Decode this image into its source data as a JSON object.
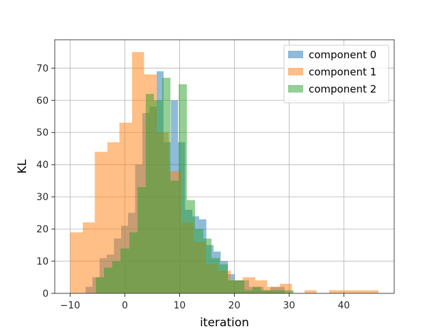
{
  "chart_data": {
    "type": "bar",
    "subtype": "overlapping-histogram",
    "xlabel": "iteration",
    "ylabel": "KL",
    "xlim": [
      -12.8,
      49.2
    ],
    "ylim": [
      0,
      78.8
    ],
    "xticks": [
      -10,
      0,
      10,
      20,
      30,
      40
    ],
    "yticks": [
      0,
      10,
      20,
      30,
      40,
      50,
      60,
      70
    ],
    "grid": true,
    "legend_position": "top-right",
    "series": [
      {
        "name": "component 0",
        "color": "#1f77b4",
        "alpha": 0.5,
        "bins": [
          [
            -7.2,
            -5.9,
            2
          ],
          [
            -5.9,
            -4.6,
            5
          ],
          [
            -4.6,
            -3.3,
            11
          ],
          [
            -3.3,
            -2.0,
            12
          ],
          [
            -2.0,
            -0.7,
            17
          ],
          [
            -0.7,
            0.6,
            21
          ],
          [
            0.6,
            1.9,
            25
          ],
          [
            1.9,
            3.2,
            40
          ],
          [
            3.2,
            4.5,
            56
          ],
          [
            4.5,
            5.8,
            58
          ],
          [
            5.8,
            7.1,
            69
          ],
          [
            7.1,
            8.4,
            47
          ],
          [
            8.4,
            9.7,
            60
          ],
          [
            9.7,
            11.0,
            47
          ],
          [
            11.0,
            12.3,
            26
          ],
          [
            12.3,
            13.6,
            24
          ],
          [
            13.6,
            14.9,
            23
          ],
          [
            14.9,
            16.2,
            15
          ],
          [
            16.2,
            17.5,
            13
          ],
          [
            17.5,
            18.8,
            10
          ],
          [
            18.8,
            20.1,
            6
          ],
          [
            20.1,
            21.4,
            4
          ],
          [
            21.4,
            22.7,
            4
          ],
          [
            22.7,
            24.0,
            2
          ],
          [
            24.0,
            25.3,
            2
          ],
          [
            25.3,
            26.6,
            1
          ],
          [
            26.6,
            27.9,
            2
          ],
          [
            27.9,
            29.2,
            2
          ]
        ]
      },
      {
        "name": "component 1",
        "color": "#ff7f0e",
        "alpha": 0.5,
        "bins": [
          [
            -10.0,
            -7.7,
            19
          ],
          [
            -7.7,
            -5.5,
            22
          ],
          [
            -5.5,
            -3.2,
            44
          ],
          [
            -3.2,
            -1.0,
            47
          ],
          [
            -1.0,
            1.3,
            53
          ],
          [
            1.3,
            3.5,
            75
          ],
          [
            3.5,
            5.8,
            68
          ],
          [
            5.8,
            8.0,
            50
          ],
          [
            8.0,
            10.3,
            38
          ],
          [
            10.3,
            12.5,
            22
          ],
          [
            12.5,
            14.8,
            16
          ],
          [
            14.8,
            17.0,
            9
          ],
          [
            17.0,
            19.3,
            7
          ],
          [
            19.3,
            21.5,
            4
          ],
          [
            21.5,
            23.8,
            5
          ],
          [
            23.8,
            26.0,
            4
          ],
          [
            26.0,
            28.3,
            2
          ],
          [
            28.3,
            30.5,
            3
          ],
          [
            30.5,
            32.8,
            0
          ],
          [
            32.8,
            35.0,
            1
          ],
          [
            35.0,
            37.3,
            0
          ],
          [
            37.3,
            39.5,
            1
          ],
          [
            39.5,
            41.8,
            1
          ],
          [
            41.8,
            44.0,
            1
          ],
          [
            44.0,
            46.3,
            1
          ]
        ]
      },
      {
        "name": "component 2",
        "color": "#2ca02c",
        "alpha": 0.5,
        "bins": [
          [
            -5.3,
            -3.8,
            5
          ],
          [
            -3.8,
            -2.3,
            8
          ],
          [
            -2.3,
            -0.8,
            10
          ],
          [
            -0.8,
            0.8,
            14
          ],
          [
            0.8,
            2.3,
            19
          ],
          [
            2.3,
            3.8,
            33
          ],
          [
            3.8,
            5.3,
            62
          ],
          [
            5.3,
            6.8,
            60
          ],
          [
            6.8,
            8.3,
            67
          ],
          [
            8.3,
            9.8,
            35
          ],
          [
            9.8,
            11.3,
            65
          ],
          [
            11.3,
            12.8,
            29
          ],
          [
            12.8,
            14.3,
            20
          ],
          [
            14.3,
            15.8,
            17
          ],
          [
            15.8,
            17.3,
            11
          ],
          [
            17.3,
            18.8,
            9
          ],
          [
            18.8,
            20.3,
            4
          ],
          [
            20.3,
            21.8,
            4
          ],
          [
            21.8,
            23.3,
            1
          ],
          [
            23.3,
            24.8,
            2
          ],
          [
            24.8,
            26.3,
            1
          ],
          [
            26.3,
            27.8,
            1
          ],
          [
            27.8,
            29.3,
            1
          ],
          [
            29.3,
            30.8,
            1
          ]
        ]
      }
    ]
  }
}
